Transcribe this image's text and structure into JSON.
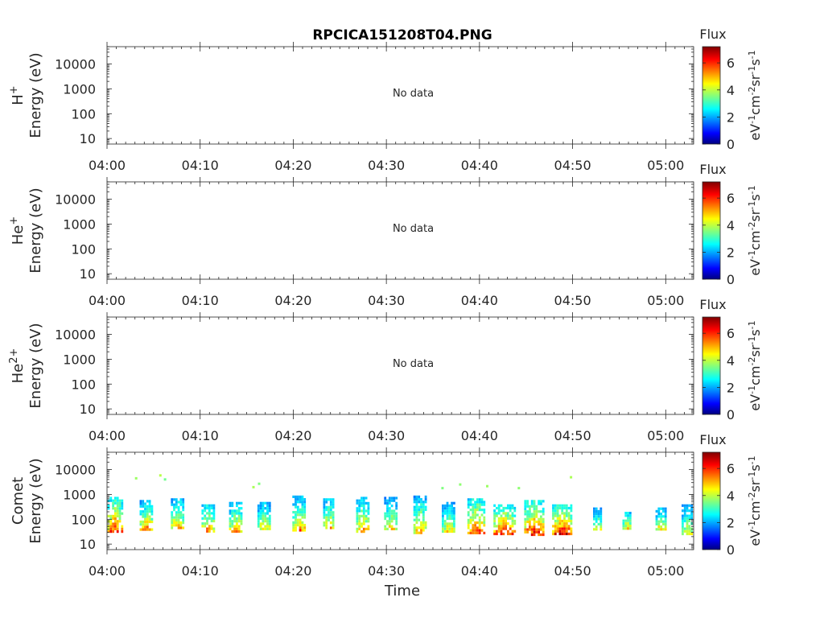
{
  "chart_data": {
    "type": "heatmap",
    "title": "RPCICA151208T04.PNG",
    "xlabel": "Time",
    "x_tick_labels": [
      "04:00",
      "04:10",
      "04:20",
      "04:30",
      "04:40",
      "04:50",
      "05:00"
    ],
    "x_tick_minutes": [
      0,
      10,
      20,
      30,
      40,
      50,
      60
    ],
    "xlim_minutes": [
      0,
      63
    ],
    "y_scale": "log",
    "ylim": [
      6,
      50000
    ],
    "y_ticks": [
      10,
      100,
      1000,
      10000
    ],
    "y_tick_labels": [
      "10",
      "100",
      "1000",
      "10000"
    ],
    "colorbar": {
      "title": "Flux",
      "range": [
        0,
        7.2
      ],
      "ticks": [
        0,
        2,
        4,
        6
      ],
      "tick_labels": [
        "0",
        "2",
        "4",
        "6"
      ],
      "colormap": "jet",
      "unit_parts": [
        "eV",
        "-1",
        "cm",
        "-2",
        "sr",
        "-1",
        "s",
        "-1"
      ]
    },
    "panels": [
      {
        "species_base": "H",
        "species_sup": "+",
        "ylabel": "Energy (eV)",
        "no_data": true,
        "no_data_text": "No data"
      },
      {
        "species_base": "He",
        "species_sup": "+",
        "ylabel": "Energy (eV)",
        "no_data": true,
        "no_data_text": "No data"
      },
      {
        "species_base": "He",
        "species_sup": "2+",
        "ylabel": "Energy (eV)",
        "no_data": true,
        "no_data_text": "No data"
      },
      {
        "species_base": "Comet",
        "species_sup": "",
        "ylabel": "Energy (eV)",
        "no_data": false,
        "bursts": [
          {
            "t": 0.8,
            "w": 1.5,
            "emin": 30,
            "emax": 800,
            "peak": 6.5
          },
          {
            "t": 4.2,
            "w": 1.4,
            "emin": 40,
            "emax": 600,
            "peak": 5.5
          },
          {
            "t": 7.5,
            "w": 1.3,
            "emin": 40,
            "emax": 700,
            "peak": 5.5
          },
          {
            "t": 10.8,
            "w": 1.3,
            "emin": 30,
            "emax": 400,
            "peak": 5.8
          },
          {
            "t": 13.8,
            "w": 1.4,
            "emin": 30,
            "emax": 500,
            "peak": 5.5
          },
          {
            "t": 16.8,
            "w": 1.3,
            "emin": 40,
            "emax": 500,
            "peak": 5.0
          },
          {
            "t": 20.6,
            "w": 1.4,
            "emin": 40,
            "emax": 900,
            "peak": 5.3
          },
          {
            "t": 23.8,
            "w": 1.2,
            "emin": 40,
            "emax": 700,
            "peak": 5.3
          },
          {
            "t": 27.4,
            "w": 1.3,
            "emin": 30,
            "emax": 800,
            "peak": 5.5
          },
          {
            "t": 30.4,
            "w": 1.3,
            "emin": 40,
            "emax": 800,
            "peak": 5.0
          },
          {
            "t": 33.6,
            "w": 1.4,
            "emin": 30,
            "emax": 900,
            "peak": 5.2
          },
          {
            "t": 36.6,
            "w": 1.3,
            "emin": 30,
            "emax": 500,
            "peak": 5.0
          },
          {
            "t": 39.6,
            "w": 1.8,
            "emin": 25,
            "emax": 700,
            "peak": 6.4
          },
          {
            "t": 42.6,
            "w": 2.2,
            "emin": 25,
            "emax": 400,
            "peak": 6.6
          },
          {
            "t": 45.8,
            "w": 2.0,
            "emin": 25,
            "emax": 600,
            "peak": 6.6
          },
          {
            "t": 48.8,
            "w": 2.0,
            "emin": 25,
            "emax": 400,
            "peak": 6.8
          },
          {
            "t": 52.6,
            "w": 0.8,
            "emin": 40,
            "emax": 300,
            "peak": 4.8
          },
          {
            "t": 55.8,
            "w": 0.9,
            "emin": 40,
            "emax": 200,
            "peak": 5.5
          },
          {
            "t": 59.4,
            "w": 1.0,
            "emin": 40,
            "emax": 300,
            "peak": 5.0
          },
          {
            "t": 62.3,
            "w": 1.2,
            "emin": 25,
            "emax": 400,
            "peak": 4.8
          }
        ],
        "scatter_points": [
          {
            "t": 3.0,
            "e": 5000,
            "v": 3.8
          },
          {
            "t": 5.6,
            "e": 6500,
            "v": 4.0
          },
          {
            "t": 6.1,
            "e": 4500,
            "v": 3.5
          },
          {
            "t": 16.2,
            "e": 3000,
            "v": 3.6
          },
          {
            "t": 15.6,
            "e": 2200,
            "v": 3.9
          },
          {
            "t": 37.8,
            "e": 2800,
            "v": 3.7
          },
          {
            "t": 35.9,
            "e": 2000,
            "v": 3.6
          },
          {
            "t": 40.7,
            "e": 2400,
            "v": 3.8
          },
          {
            "t": 44.1,
            "e": 2000,
            "v": 3.7
          },
          {
            "t": 49.7,
            "e": 5500,
            "v": 3.9
          }
        ]
      }
    ]
  }
}
